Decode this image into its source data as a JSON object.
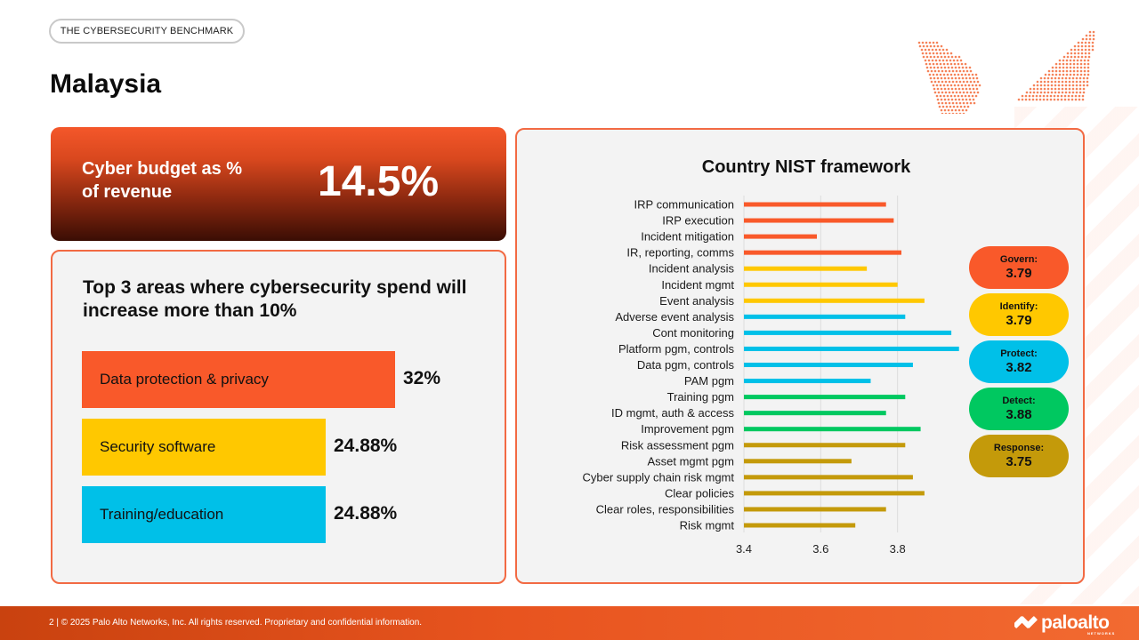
{
  "header": {
    "tag": "THE CYBERSECURITY BENCHMARK",
    "title": "Malaysia"
  },
  "budget": {
    "label": "Cyber budget as % of revenue",
    "value": "14.5%"
  },
  "spend": {
    "title": "Top 3 areas where cybersecurity spend will increase more than 10%",
    "items": [
      {
        "label": "Data protection & privacy",
        "value": 32,
        "display": "32%",
        "color": "#f9592a"
      },
      {
        "label": "Security software",
        "value": 24.88,
        "display": "24.88%",
        "color": "#ffc800"
      },
      {
        "label": "Training/education",
        "value": 24.88,
        "display": "24.88%",
        "color": "#00c0e8"
      }
    ]
  },
  "nist": {
    "title": "Country NIST framework",
    "pills": [
      {
        "name": "Govern:",
        "value": "3.79",
        "color": "#f9592a"
      },
      {
        "name": "Identify:",
        "value": "3.79",
        "color": "#ffc800"
      },
      {
        "name": "Protect:",
        "value": "3.82",
        "color": "#00c0e8"
      },
      {
        "name": "Detect:",
        "value": "3.88",
        "color": "#00c860"
      },
      {
        "name": "Response:",
        "value": "3.75",
        "color": "#c49a0a"
      }
    ]
  },
  "chart_data": {
    "type": "bar",
    "orientation": "horizontal",
    "title": "Country NIST framework",
    "xlim": [
      3.4,
      4
    ],
    "xticks": [
      "3.4",
      "3.6",
      "3.8",
      "4"
    ],
    "grid": true,
    "categories": [
      "IRP communication",
      "IRP execution",
      "Incident mitigation",
      "IR, reporting, comms",
      "Incident analysis",
      "Incident mgmt",
      "Event analysis",
      "Adverse event analysis",
      "Cont monitoring",
      "Platform pgm, controls",
      "Data pgm, controls",
      "PAM pgm",
      "Training pgm",
      "ID mgmt, auth & access",
      "Improvement pgm",
      "Risk assessment pgm",
      "Asset mgmt pgm",
      "Cyber supply chain risk mgmt",
      "Clear policies",
      "Clear roles, responsibilities",
      "Risk mgmt"
    ],
    "values": [
      3.77,
      3.79,
      3.59,
      3.81,
      3.72,
      3.8,
      3.87,
      3.82,
      3.94,
      3.96,
      3.84,
      3.73,
      3.82,
      3.77,
      3.86,
      3.82,
      3.68,
      3.84,
      3.87,
      3.77,
      3.69
    ],
    "bar_colors": [
      "#f9592a",
      "#f9592a",
      "#f9592a",
      "#f9592a",
      "#ffc800",
      "#ffc800",
      "#ffc800",
      "#00c0e8",
      "#00c0e8",
      "#00c0e8",
      "#00c0e8",
      "#00c0e8",
      "#00c860",
      "#00c860",
      "#00c860",
      "#c49a0a",
      "#c49a0a",
      "#c49a0a",
      "#c49a0a",
      "#c49a0a",
      "#c49a0a"
    ]
  },
  "footer": {
    "text": "2 | © 2025 Palo Alto Networks, Inc. All rights reserved. Proprietary and confidential information.",
    "logo": "paloalto",
    "logo_sub": "NETWORKS"
  }
}
